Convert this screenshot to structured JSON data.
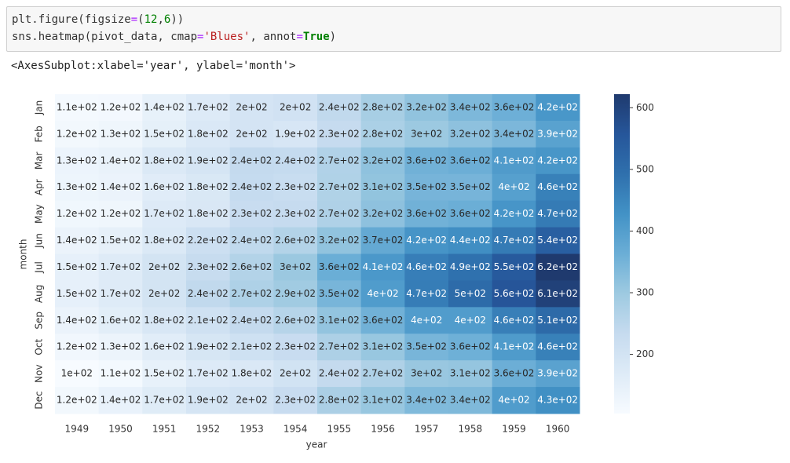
{
  "code": {
    "lines": [
      [
        "plt.figure(figsize",
        "=",
        "(",
        "12",
        ",",
        "6",
        "))"
      ],
      [
        "sns.heatmap(pivot_data, cmap",
        "=",
        "'Blues'",
        ", annot",
        "=",
        "True",
        ")"
      ]
    ]
  },
  "output": "<AxesSubplot:xlabel='year', ylabel='month'>",
  "chart_data": {
    "type": "heatmap",
    "x_label": "year",
    "y_label": "month",
    "x_categories": [
      "1949",
      "1950",
      "1951",
      "1952",
      "1953",
      "1954",
      "1955",
      "1956",
      "1957",
      "1958",
      "1959",
      "1960"
    ],
    "y_categories": [
      "Jan",
      "Feb",
      "Mar",
      "Apr",
      "May",
      "Jun",
      "Jul",
      "Aug",
      "Sep",
      "Oct",
      "Nov",
      "Dec"
    ],
    "values": [
      [
        112,
        115,
        145,
        171,
        196,
        204,
        242,
        284,
        315,
        340,
        360,
        417
      ],
      [
        118,
        126,
        150,
        180,
        196,
        188,
        233,
        277,
        301,
        318,
        342,
        391
      ],
      [
        132,
        141,
        178,
        193,
        236,
        235,
        267,
        317,
        356,
        362,
        406,
        419
      ],
      [
        129,
        135,
        163,
        181,
        235,
        227,
        269,
        313,
        348,
        348,
        396,
        461
      ],
      [
        121,
        125,
        172,
        183,
        229,
        234,
        270,
        318,
        355,
        363,
        420,
        472
      ],
      [
        135,
        149,
        178,
        218,
        243,
        264,
        315,
        374,
        422,
        435,
        472,
        535
      ],
      [
        148,
        170,
        199,
        230,
        264,
        302,
        364,
        413,
        465,
        491,
        548,
        622
      ],
      [
        148,
        170,
        199,
        242,
        272,
        293,
        347,
        405,
        467,
        505,
        559,
        606
      ],
      [
        136,
        158,
        184,
        209,
        237,
        259,
        312,
        355,
        404,
        404,
        463,
        508
      ],
      [
        119,
        133,
        162,
        191,
        211,
        229,
        274,
        306,
        347,
        359,
        407,
        461
      ],
      [
        104,
        114,
        146,
        172,
        180,
        203,
        237,
        271,
        305,
        310,
        362,
        390
      ],
      [
        118,
        140,
        166,
        194,
        201,
        229,
        278,
        306,
        336,
        337,
        405,
        432
      ]
    ],
    "value_labels": [
      [
        "1.1e+02",
        "1.2e+02",
        "1.4e+02",
        "1.7e+02",
        "2e+02",
        "2e+02",
        "2.4e+02",
        "2.8e+02",
        "3.2e+02",
        "3.4e+02",
        "3.6e+02",
        "4.2e+02"
      ],
      [
        "1.2e+02",
        "1.3e+02",
        "1.5e+02",
        "1.8e+02",
        "2e+02",
        "1.9e+02",
        "2.3e+02",
        "2.8e+02",
        "3e+02",
        "3.2e+02",
        "3.4e+02",
        "3.9e+02"
      ],
      [
        "1.3e+02",
        "1.4e+02",
        "1.8e+02",
        "1.9e+02",
        "2.4e+02",
        "2.4e+02",
        "2.7e+02",
        "3.2e+02",
        "3.6e+02",
        "3.6e+02",
        "4.1e+02",
        "4.2e+02"
      ],
      [
        "1.3e+02",
        "1.4e+02",
        "1.6e+02",
        "1.8e+02",
        "2.4e+02",
        "2.3e+02",
        "2.7e+02",
        "3.1e+02",
        "3.5e+02",
        "3.5e+02",
        "4e+02",
        "4.6e+02"
      ],
      [
        "1.2e+02",
        "1.2e+02",
        "1.7e+02",
        "1.8e+02",
        "2.3e+02",
        "2.3e+02",
        "2.7e+02",
        "3.2e+02",
        "3.6e+02",
        "3.6e+02",
        "4.2e+02",
        "4.7e+02"
      ],
      [
        "1.4e+02",
        "1.5e+02",
        "1.8e+02",
        "2.2e+02",
        "2.4e+02",
        "2.6e+02",
        "3.2e+02",
        "3.7e+02",
        "4.2e+02",
        "4.4e+02",
        "4.7e+02",
        "5.4e+02"
      ],
      [
        "1.5e+02",
        "1.7e+02",
        "2e+02",
        "2.3e+02",
        "2.6e+02",
        "3e+02",
        "3.6e+02",
        "4.1e+02",
        "4.6e+02",
        "4.9e+02",
        "5.5e+02",
        "6.2e+02"
      ],
      [
        "1.5e+02",
        "1.7e+02",
        "2e+02",
        "2.4e+02",
        "2.7e+02",
        "2.9e+02",
        "3.5e+02",
        "4e+02",
        "4.7e+02",
        "5e+02",
        "5.6e+02",
        "6.1e+02"
      ],
      [
        "1.4e+02",
        "1.6e+02",
        "1.8e+02",
        "2.1e+02",
        "2.4e+02",
        "2.6e+02",
        "3.1e+02",
        "3.6e+02",
        "4e+02",
        "4e+02",
        "4.6e+02",
        "5.1e+02"
      ],
      [
        "1.2e+02",
        "1.3e+02",
        "1.6e+02",
        "1.9e+02",
        "2.1e+02",
        "2.3e+02",
        "2.7e+02",
        "3.1e+02",
        "3.5e+02",
        "3.6e+02",
        "4.1e+02",
        "4.6e+02"
      ],
      [
        "1e+02",
        "1.1e+02",
        "1.5e+02",
        "1.7e+02",
        "1.8e+02",
        "2e+02",
        "2.4e+02",
        "2.7e+02",
        "3e+02",
        "3.1e+02",
        "3.6e+02",
        "3.9e+02"
      ],
      [
        "1.2e+02",
        "1.4e+02",
        "1.7e+02",
        "1.9e+02",
        "2e+02",
        "2.3e+02",
        "2.8e+02",
        "3.1e+02",
        "3.4e+02",
        "3.4e+02",
        "4e+02",
        "4.3e+02"
      ]
    ],
    "colors": [
      "#f7fbff",
      "#deebf7",
      "#c6dbef",
      "#9ecae1",
      "#6baed6",
      "#4292c6",
      "#2f70ad",
      "#26569a",
      "#1f3a6e"
    ],
    "clim": [
      104,
      622
    ],
    "cticks": [
      200,
      300,
      400,
      500,
      600
    ]
  }
}
